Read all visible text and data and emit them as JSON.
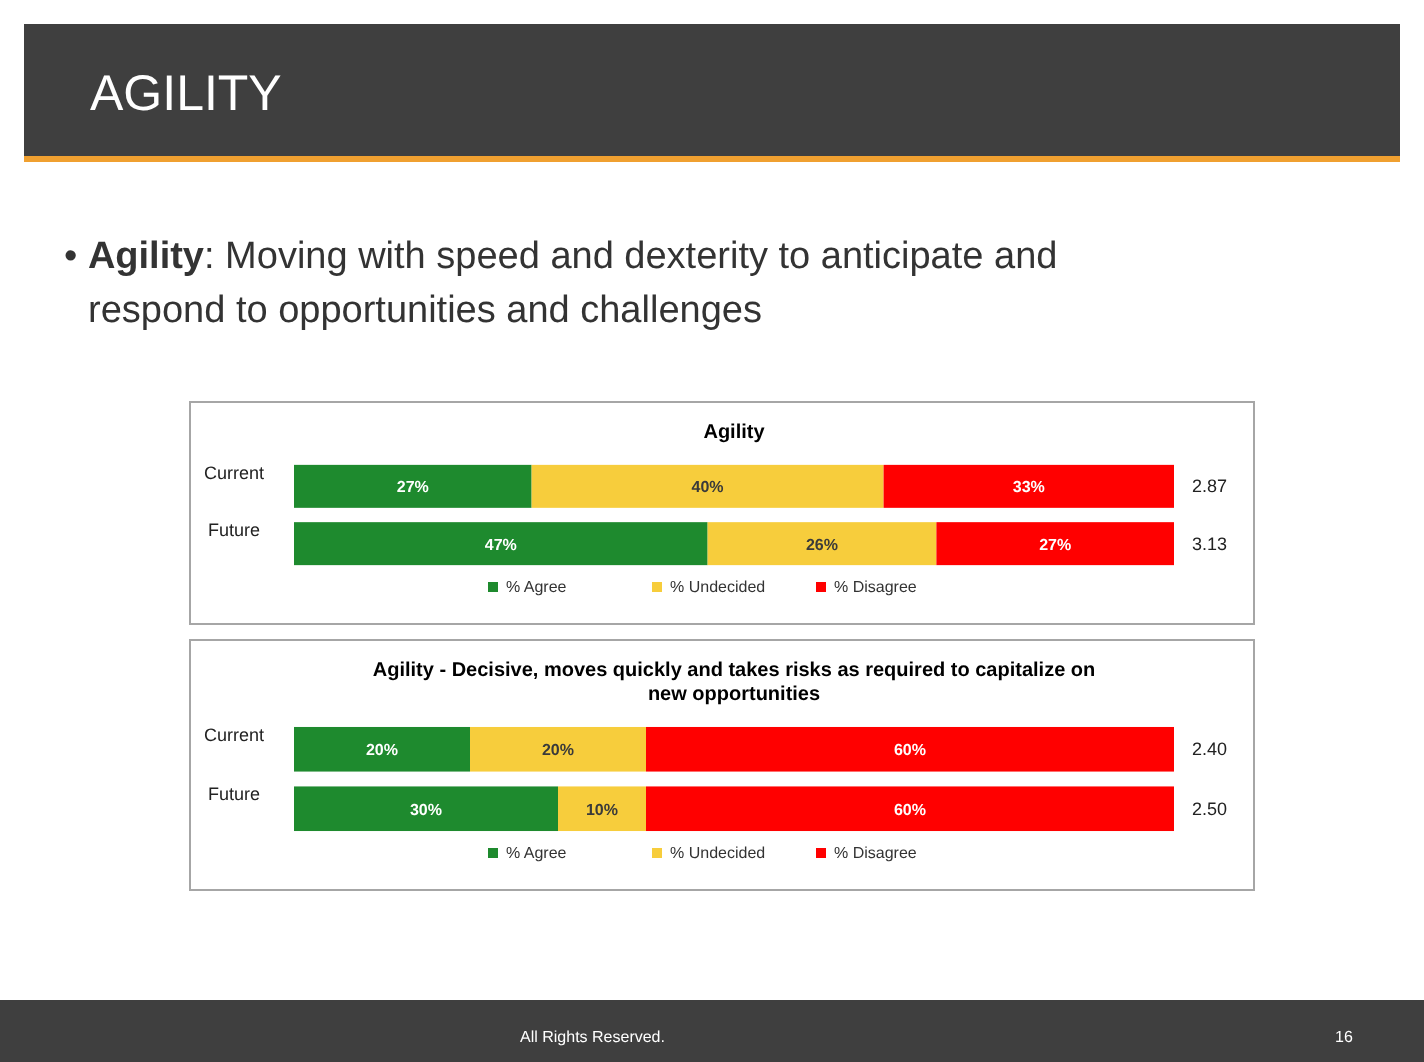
{
  "chart_data": [
    {
      "type": "bar",
      "title": "Agility",
      "stacked": true,
      "orientation": "horizontal",
      "xlim": [
        0,
        100
      ],
      "tick_labels": "y",
      "legend": "bottom",
      "categories": [
        "Current",
        "Future"
      ],
      "series": [
        {
          "name": "% Agree",
          "color": "#1e8a2e",
          "values": [
            27,
            47
          ],
          "value_labels": [
            "27%",
            "47%"
          ]
        },
        {
          "name": "% Undecided",
          "color": "#f7cd3c",
          "values": [
            40,
            26
          ],
          "value_labels": [
            "40%",
            "26%"
          ]
        },
        {
          "name": "% Disagree",
          "color": "#ff0000",
          "values": [
            33,
            27
          ],
          "value_labels": [
            "33%",
            "27%"
          ]
        }
      ],
      "annotations": [
        "AGILITY",
        "• Agility: Moving with speed and dexterity to anticipate and respond to opportunities and challenges",
        "2.87",
        "3.13"
      ]
    },
    {
      "type": "bar",
      "title": "Agility - Decisive, moves quickly and takes risks as required to capitalize on new opportunities",
      "stacked": true,
      "orientation": "horizontal",
      "xlim": [
        0,
        100
      ],
      "tick_labels": "y",
      "legend": "bottom",
      "categories": [
        "Current",
        "Future"
      ],
      "series": [
        {
          "name": "% Agree",
          "color": "#1e8a2e",
          "values": [
            20,
            30
          ],
          "value_labels": [
            "20%",
            "30%"
          ]
        },
        {
          "name": "% Undecided",
          "color": "#f7cd3c",
          "values": [
            20,
            10
          ],
          "value_labels": [
            "20%",
            "10%"
          ]
        },
        {
          "name": "% Disagree",
          "color": "#ff0000",
          "values": [
            60,
            60
          ],
          "value_labels": [
            "60%",
            "60%"
          ]
        }
      ],
      "annotations": [
        "2.40",
        "2.50",
        "All Rights Reserved.",
        "16"
      ]
    }
  ]
}
